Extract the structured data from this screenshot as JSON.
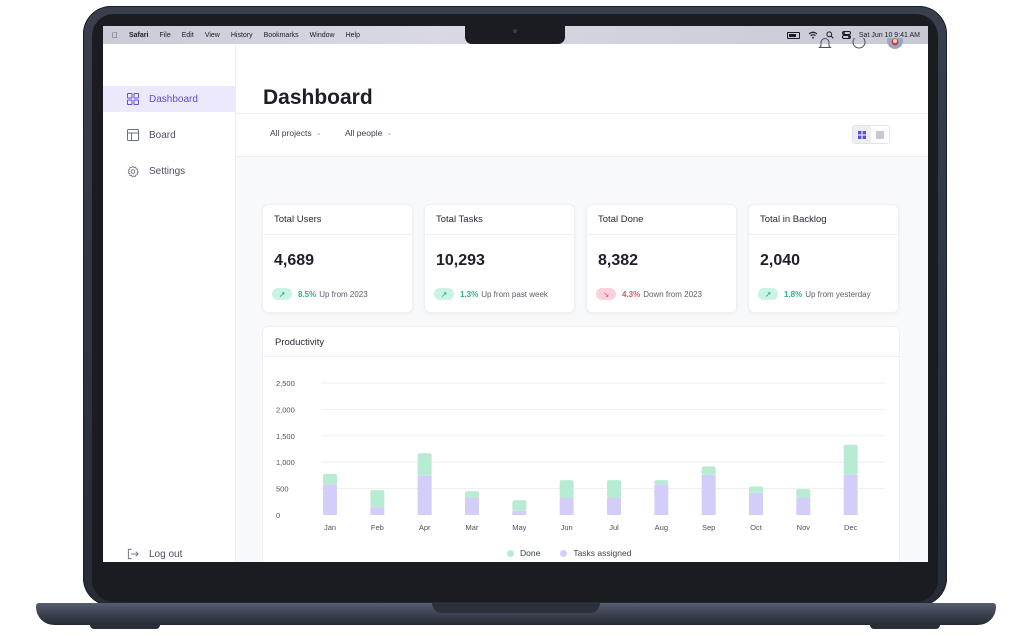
{
  "menubar": {
    "app": "Safari",
    "items": [
      "File",
      "Edit",
      "View",
      "History",
      "Bookmarks",
      "Window",
      "Help"
    ],
    "clock": "Sat Jun 10  9:41 AM"
  },
  "sidebar": {
    "items": [
      {
        "label": "Dashboard",
        "icon": "grid-icon"
      },
      {
        "label": "Board",
        "icon": "board-icon"
      },
      {
        "label": "Settings",
        "icon": "gear-icon"
      }
    ],
    "logout_label": "Log out"
  },
  "header": {
    "title": "Dashboard"
  },
  "filters": {
    "projects": "All projects",
    "people": "All people"
  },
  "cards": [
    {
      "title": "Total Users",
      "value": "4,689",
      "direction": "up",
      "pct": "8.5%",
      "note": "Up from 2023"
    },
    {
      "title": "Total Tasks",
      "value": "10,293",
      "direction": "up",
      "pct": "1.3%",
      "note": "Up from past week"
    },
    {
      "title": "Total Done",
      "value": "8,382",
      "direction": "down",
      "pct": "4.3%",
      "note": "Down from 2023"
    },
    {
      "title": "Total in Backlog",
      "value": "2,040",
      "direction": "up",
      "pct": "1.8%",
      "note": "Up from yesterday"
    }
  ],
  "colors": {
    "accent": "#5b4fd6",
    "done": "#b8ecd2",
    "assigned": "#d3cdfa",
    "up": "#2bb384",
    "down": "#e05570"
  },
  "productivity": {
    "title": "Productivity"
  },
  "chart_data": {
    "type": "bar",
    "stacked": true,
    "categories": [
      "Jan",
      "Feb",
      "Apr",
      "Mar",
      "May",
      "Jun",
      "Jul",
      "Aug",
      "Sep",
      "Oct",
      "Nov",
      "Dec"
    ],
    "series": [
      {
        "name": "Tasks assigned",
        "values": [
          580,
          150,
          750,
          330,
          80,
          330,
          330,
          580,
          760,
          420,
          330,
          760
        ]
      },
      {
        "name": "Done",
        "values": [
          200,
          320,
          420,
          120,
          200,
          330,
          330,
          80,
          160,
          120,
          160,
          570
        ]
      }
    ],
    "yticks": [
      "2,500",
      "2,000",
      "1,500",
      "1,000",
      "500",
      "0"
    ],
    "ylim": [
      0,
      2500
    ],
    "grid": true,
    "legend": "bottom"
  }
}
